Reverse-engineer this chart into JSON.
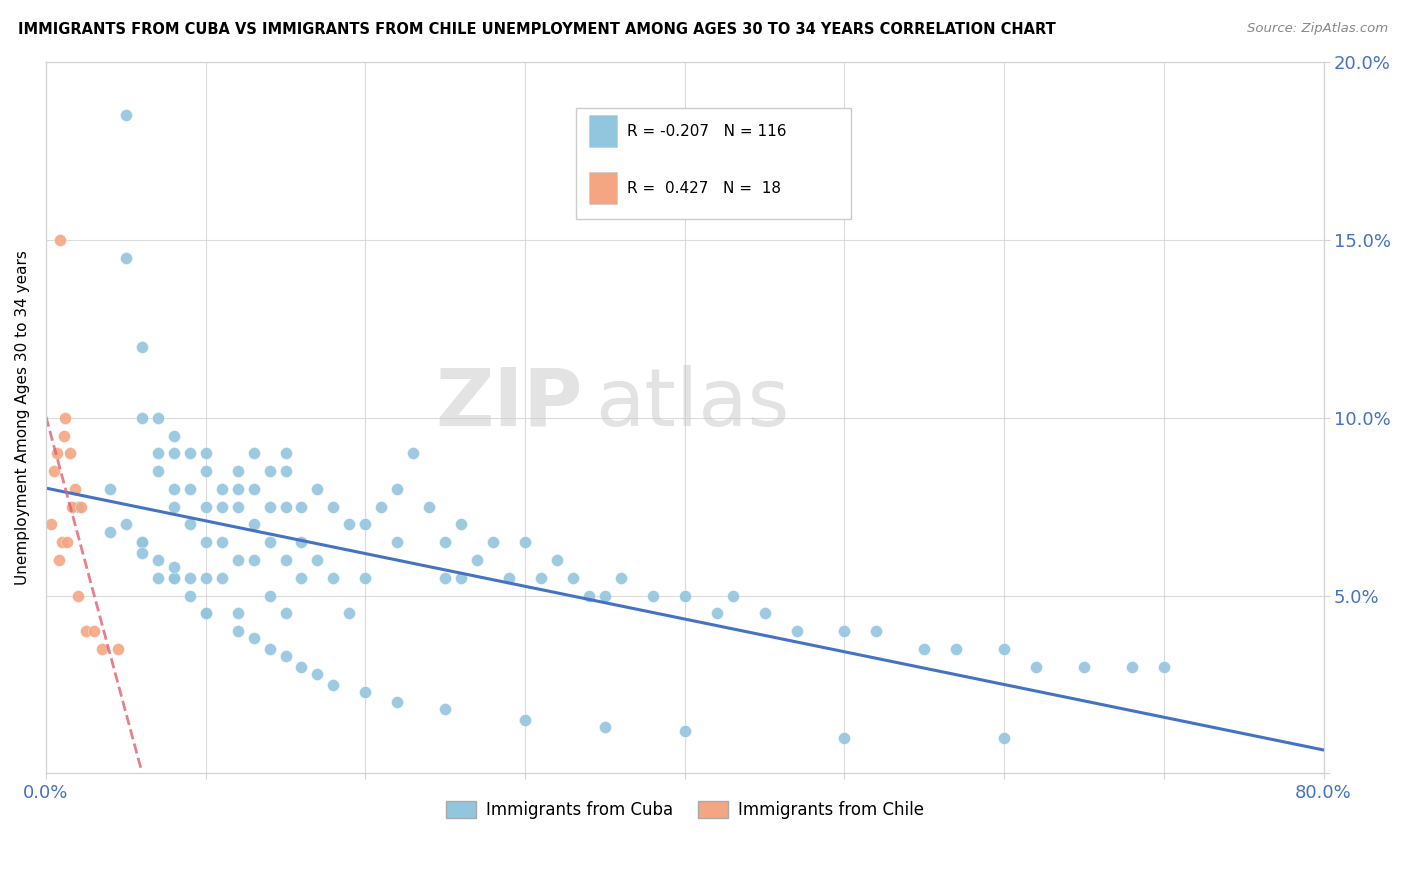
{
  "title": "IMMIGRANTS FROM CUBA VS IMMIGRANTS FROM CHILE UNEMPLOYMENT AMONG AGES 30 TO 34 YEARS CORRELATION CHART",
  "source": "Source: ZipAtlas.com",
  "ylabel": "Unemployment Among Ages 30 to 34 years",
  "xlim": [
    0.0,
    0.8
  ],
  "ylim": [
    0.0,
    0.2
  ],
  "xticks": [
    0.0,
    0.1,
    0.2,
    0.3,
    0.4,
    0.5,
    0.6,
    0.7,
    0.8
  ],
  "ytick_positions": [
    0.0,
    0.05,
    0.1,
    0.15,
    0.2
  ],
  "yticklabels": [
    "",
    "5.0%",
    "10.0%",
    "15.0%",
    "20.0%"
  ],
  "cuba_color": "#92C5DE",
  "chile_color": "#F4A582",
  "cuba_line_color": "#4472C4",
  "chile_line_color": "#E06070",
  "cuba_R": -0.207,
  "cuba_N": 116,
  "chile_R": 0.427,
  "chile_N": 18,
  "watermark_line1": "ZIP",
  "watermark_line2": "atlas",
  "cuba_scatter_x": [
    0.02,
    0.04,
    0.05,
    0.05,
    0.06,
    0.06,
    0.06,
    0.07,
    0.07,
    0.07,
    0.07,
    0.08,
    0.08,
    0.08,
    0.08,
    0.08,
    0.09,
    0.09,
    0.09,
    0.09,
    0.1,
    0.1,
    0.1,
    0.1,
    0.1,
    0.1,
    0.11,
    0.11,
    0.11,
    0.11,
    0.12,
    0.12,
    0.12,
    0.12,
    0.12,
    0.13,
    0.13,
    0.13,
    0.13,
    0.14,
    0.14,
    0.14,
    0.14,
    0.15,
    0.15,
    0.15,
    0.15,
    0.15,
    0.16,
    0.16,
    0.16,
    0.17,
    0.17,
    0.18,
    0.18,
    0.19,
    0.19,
    0.2,
    0.2,
    0.21,
    0.22,
    0.22,
    0.23,
    0.24,
    0.25,
    0.25,
    0.26,
    0.26,
    0.27,
    0.28,
    0.29,
    0.3,
    0.31,
    0.32,
    0.33,
    0.34,
    0.35,
    0.36,
    0.38,
    0.4,
    0.42,
    0.43,
    0.45,
    0.47,
    0.5,
    0.52,
    0.55,
    0.57,
    0.6,
    0.62,
    0.65,
    0.68,
    0.7,
    0.05,
    0.06,
    0.07,
    0.08,
    0.09,
    0.1,
    0.12,
    0.13,
    0.14,
    0.15,
    0.16,
    0.17,
    0.18,
    0.2,
    0.22,
    0.25,
    0.3,
    0.35,
    0.4,
    0.5,
    0.6,
    0.04,
    0.06,
    0.08
  ],
  "cuba_scatter_y": [
    0.075,
    0.08,
    0.185,
    0.145,
    0.12,
    0.1,
    0.065,
    0.1,
    0.09,
    0.085,
    0.055,
    0.095,
    0.09,
    0.08,
    0.075,
    0.055,
    0.09,
    0.08,
    0.07,
    0.055,
    0.09,
    0.085,
    0.075,
    0.065,
    0.055,
    0.045,
    0.08,
    0.075,
    0.065,
    0.055,
    0.085,
    0.08,
    0.075,
    0.06,
    0.045,
    0.09,
    0.08,
    0.07,
    0.06,
    0.085,
    0.075,
    0.065,
    0.05,
    0.09,
    0.085,
    0.075,
    0.06,
    0.045,
    0.075,
    0.065,
    0.055,
    0.08,
    0.06,
    0.075,
    0.055,
    0.07,
    0.045,
    0.07,
    0.055,
    0.075,
    0.08,
    0.065,
    0.09,
    0.075,
    0.065,
    0.055,
    0.07,
    0.055,
    0.06,
    0.065,
    0.055,
    0.065,
    0.055,
    0.06,
    0.055,
    0.05,
    0.05,
    0.055,
    0.05,
    0.05,
    0.045,
    0.05,
    0.045,
    0.04,
    0.04,
    0.04,
    0.035,
    0.035,
    0.035,
    0.03,
    0.03,
    0.03,
    0.03,
    0.07,
    0.065,
    0.06,
    0.055,
    0.05,
    0.045,
    0.04,
    0.038,
    0.035,
    0.033,
    0.03,
    0.028,
    0.025,
    0.023,
    0.02,
    0.018,
    0.015,
    0.013,
    0.012,
    0.01,
    0.01,
    0.068,
    0.062,
    0.058
  ],
  "chile_scatter_x": [
    0.003,
    0.005,
    0.007,
    0.008,
    0.009,
    0.01,
    0.011,
    0.012,
    0.013,
    0.015,
    0.016,
    0.018,
    0.02,
    0.022,
    0.025,
    0.03,
    0.035,
    0.045
  ],
  "chile_scatter_y": [
    0.07,
    0.085,
    0.09,
    0.06,
    0.15,
    0.065,
    0.095,
    0.1,
    0.065,
    0.09,
    0.075,
    0.08,
    0.05,
    0.075,
    0.04,
    0.04,
    0.035,
    0.035
  ]
}
